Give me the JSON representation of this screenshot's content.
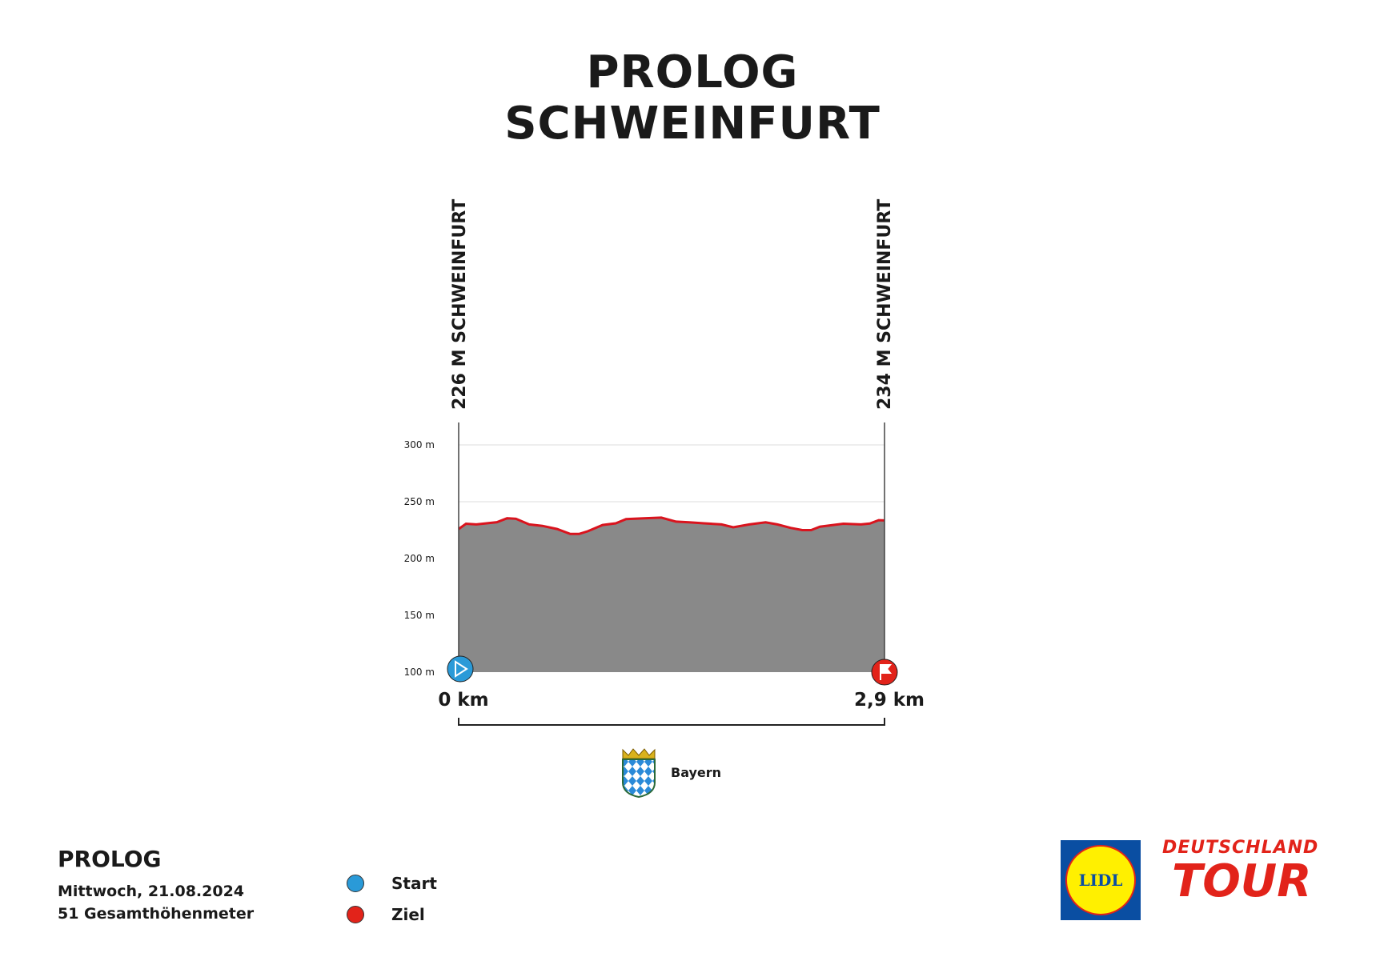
{
  "title": {
    "line1": "PROLOG",
    "line2": "SCHWEINFURT"
  },
  "start_label": "226 M SCHWEINFURT",
  "finish_label": "234 M SCHWEINFURT",
  "region": "Bayern",
  "footer": {
    "stage": "PROLOG",
    "date": "Mittwoch, 21.08.2024",
    "climb": "51 Gesamthöhenmeter"
  },
  "legend": [
    {
      "label": "Start",
      "color": "#2a9ad8"
    },
    {
      "label": "Ziel",
      "color": "#e2231a"
    }
  ],
  "logos": {
    "lidl": "LIDL",
    "tour_top": "DEUTSCHLAND",
    "tour_bottom": "TOUR"
  },
  "colors": {
    "fill": "#898989",
    "line": "#d9141e",
    "start": "#2a9ad8",
    "finish": "#e2231a"
  },
  "chart_data": {
    "type": "area",
    "title": "PROLOG SCHWEINFURT",
    "xlabel": "km",
    "ylabel": "m",
    "ylim": [
      100,
      300
    ],
    "xlim": [
      0,
      2.9
    ],
    "yticks": [
      {
        "v": 300,
        "label": "300 m"
      },
      {
        "v": 250,
        "label": "250 m"
      },
      {
        "v": 200,
        "label": "200 m"
      },
      {
        "v": 150,
        "label": "150 m"
      },
      {
        "v": 100,
        "label": "100 m"
      }
    ],
    "xticks": [
      {
        "v": 0,
        "label": "0 km"
      },
      {
        "v": 2.9,
        "label": "2,9 km"
      }
    ],
    "x": [
      0,
      0.05,
      0.12,
      0.26,
      0.33,
      0.39,
      0.48,
      0.57,
      0.67,
      0.76,
      0.82,
      0.88,
      0.98,
      1.07,
      1.14,
      1.26,
      1.38,
      1.48,
      1.57,
      1.67,
      1.79,
      1.87,
      1.98,
      2.09,
      2.17,
      2.26,
      2.34,
      2.4,
      2.46,
      2.55,
      2.62,
      2.74,
      2.8,
      2.86,
      2.9
    ],
    "y": [
      226,
      230.6,
      230,
      232,
      235.4,
      235,
      230,
      228.7,
      226,
      221.6,
      221.6,
      224,
      229.5,
      231,
      234.7,
      235.4,
      236,
      232.5,
      231.8,
      231,
      230,
      227.5,
      230,
      231.8,
      230,
      227,
      225,
      225,
      228,
      229.5,
      230.6,
      230,
      230.8,
      233.7,
      233.5
    ]
  }
}
